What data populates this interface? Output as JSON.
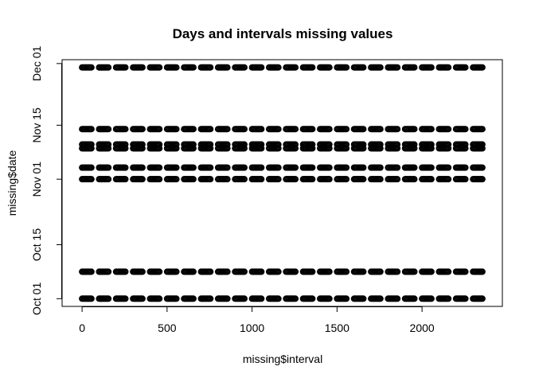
{
  "chart_data": {
    "type": "scatter",
    "title": "Days and intervals missing values",
    "xlabel": "missing$interval",
    "ylabel": "missing$date",
    "xlim": [
      -117.5,
      2472.5
    ],
    "ylim": [
      "2012-09-29",
      "2012-12-02"
    ],
    "x_ticks": [
      0,
      500,
      1000,
      1500,
      2000
    ],
    "y_ticks": [
      {
        "date": "2012-10-01",
        "label": "Oct 01"
      },
      {
        "date": "2012-10-15",
        "label": "Oct 15"
      },
      {
        "date": "2012-11-01",
        "label": "Nov 01"
      },
      {
        "date": "2012-11-15",
        "label": "Nov 15"
      },
      {
        "date": "2012-12-01",
        "label": "Dec 01"
      }
    ],
    "grid": false,
    "legend": "none",
    "marker": "open-circle",
    "marker_color": "#000000",
    "series": [
      {
        "y_dates": [
          "2012-10-01",
          "2012-10-08",
          "2012-11-01",
          "2012-11-04",
          "2012-11-09",
          "2012-11-10",
          "2012-11-14",
          "2012-11-30"
        ],
        "x": "5-minute intervals 0–2355 (HHMM): 0, 5, 10, …, 55, 100, 105, …, 2355 (288 values per date)"
      }
    ]
  }
}
